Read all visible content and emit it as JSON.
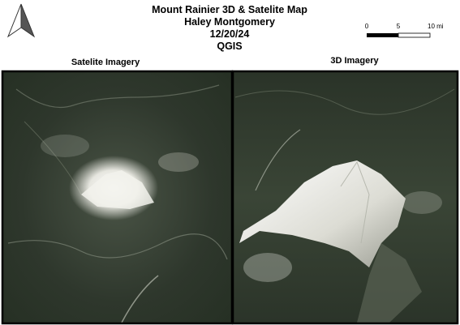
{
  "header": {
    "title_lines": [
      "Mount Rainier 3D & Satelite Map",
      "Haley Montgomery",
      "12/20/24",
      "QGIS"
    ]
  },
  "scale_bar": {
    "labels": [
      "0",
      "5",
      "10 mi"
    ]
  },
  "panels": [
    {
      "label": "Satelite Imagery"
    },
    {
      "label": "3D Imagery"
    }
  ]
}
